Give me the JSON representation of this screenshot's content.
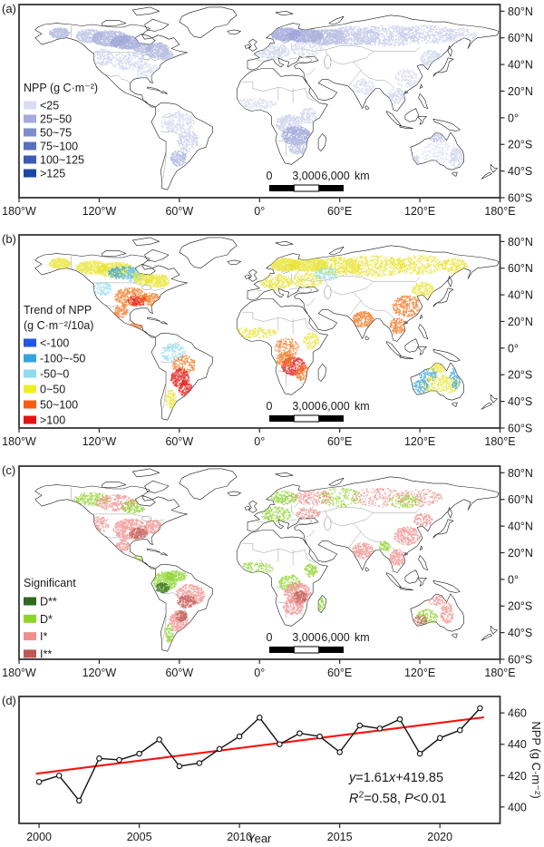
{
  "panel_letters": {
    "a": "(a)",
    "b": "(b)",
    "c": "(c)",
    "d": "(d)"
  },
  "map_axes": {
    "lon_ticks": [
      "180°W",
      "120°W",
      "60°W",
      "0°",
      "60°E",
      "120°E",
      "180°E"
    ],
    "lat_ticks": [
      "80°N",
      "60°N",
      "40°N",
      "20°N",
      "0°",
      "20°S",
      "40°S",
      "60°S"
    ]
  },
  "scalebar": {
    "start": "0",
    "mid": "3,000",
    "end": "6,000",
    "unit": "km"
  },
  "legends": {
    "a": {
      "title": "NPP (g C·m⁻²)",
      "items": [
        {
          "label": "<25",
          "color": "#dadcf0"
        },
        {
          "label": "25~50",
          "color": "#a6abdc"
        },
        {
          "label": "50~75",
          "color": "#7e8cca"
        },
        {
          "label": "75~100",
          "color": "#5a72be"
        },
        {
          "label": "100~125",
          "color": "#3b5cb2"
        },
        {
          "label": ">125",
          "color": "#1b46a4"
        }
      ]
    },
    "b": {
      "title": "Trend of NPP",
      "subtitle": "(g C·m⁻²/10a)",
      "items": [
        {
          "label": "<-100",
          "color": "#2255e2"
        },
        {
          "label": "-100~-50",
          "color": "#37a4db"
        },
        {
          "label": "-50~0",
          "color": "#8edbee"
        },
        {
          "label": "0~50",
          "color": "#f1ee27"
        },
        {
          "label": "50~100",
          "color": "#f85d13"
        },
        {
          "label": ">100",
          "color": "#e41413"
        }
      ]
    },
    "c": {
      "title": "Significant",
      "items": [
        {
          "label": "D**",
          "color": "#2e6b1e"
        },
        {
          "label": "D*",
          "color": "#8cd427"
        },
        {
          "label": "I*",
          "color": "#ee908d"
        },
        {
          "label": "I**",
          "color": "#bd5a54"
        }
      ]
    }
  },
  "chart_data": {
    "type": "line",
    "xlabel": "Year",
    "ylabel": "NPP (g C·m⁻²)",
    "x": [
      2000,
      2001,
      2002,
      2003,
      2004,
      2005,
      2006,
      2007,
      2008,
      2009,
      2010,
      2011,
      2012,
      2013,
      2014,
      2015,
      2016,
      2017,
      2018,
      2019,
      2020,
      2021,
      2022
    ],
    "values": [
      416,
      420,
      404,
      431,
      430,
      434,
      443,
      426,
      428,
      437,
      445,
      457,
      440,
      447,
      445,
      435,
      452,
      450,
      456,
      434,
      444,
      449,
      463
    ],
    "xticks": [
      2000,
      2005,
      2010,
      2015,
      2020
    ],
    "yticks": [
      400,
      420,
      440,
      460
    ],
    "xlim": [
      1999,
      2023
    ],
    "ylim": [
      389.5,
      470.5
    ],
    "grid": false,
    "legend_position": "none",
    "line_color": "#111111",
    "marker": "open-circle",
    "trendline": {
      "slope": 1.61,
      "intercept": 419.85,
      "r2": 0.58,
      "p": "<0.01",
      "color": "#fa1110",
      "equation": [
        {
          "t": "y",
          "i": true
        },
        {
          "t": "=1.61"
        },
        {
          "t": "x",
          "i": true
        },
        {
          "t": "+419.85"
        }
      ],
      "stats": [
        {
          "t": "R",
          "i": true
        },
        {
          "t": "2",
          "sup": true
        },
        {
          "t": "=0.58, "
        },
        {
          "t": "P",
          "i": true
        },
        {
          "t": "<0.01"
        }
      ]
    }
  },
  "map_speckles": {
    "a": [
      [
        -150,
        64,
        8,
        4,
        "#aab2dd",
        260
      ],
      [
        -128,
        62,
        10,
        5,
        "#b9c0e4",
        300
      ],
      [
        -112,
        60,
        14,
        6,
        "#a5aeda",
        550
      ],
      [
        -100,
        57,
        12,
        5,
        "#97a1d5",
        500
      ],
      [
        -88,
        54,
        8,
        5,
        "#b0b7df",
        260
      ],
      [
        -77,
        51,
        9,
        6,
        "#a5aeda",
        320
      ],
      [
        -70,
        47,
        5,
        4,
        "#b9c0e4",
        140
      ],
      [
        -118,
        46,
        8,
        6,
        "#ccd1ec",
        140
      ],
      [
        -98,
        43,
        14,
        7,
        "#ccd1ec",
        220
      ],
      [
        -84,
        34,
        9,
        7,
        "#d3d7ee",
        150
      ],
      [
        19,
        63,
        11,
        5,
        "#99a2d6",
        500
      ],
      [
        34,
        62,
        13,
        5,
        "#99a2d6",
        520
      ],
      [
        50,
        61,
        15,
        6,
        "#adb4dd",
        450
      ],
      [
        70,
        62,
        20,
        7,
        "#bcc2e4",
        480
      ],
      [
        95,
        62,
        25,
        8,
        "#c6cbe9",
        420
      ],
      [
        125,
        63,
        22,
        7,
        "#c6cbe9",
        330
      ],
      [
        150,
        62,
        12,
        6,
        "#cdd2ec",
        160
      ],
      [
        10,
        50,
        12,
        6,
        "#ccd1ec",
        220
      ],
      [
        35,
        52,
        12,
        6,
        "#d3d7ee",
        160
      ],
      [
        128,
        45,
        8,
        6,
        "#ccd1ec",
        160
      ],
      [
        110,
        30,
        9,
        7,
        "#d3d7ee",
        130
      ],
      [
        78,
        24,
        8,
        6,
        "#d3d7ee",
        110
      ],
      [
        102,
        17,
        6,
        6,
        "#ccd1ec",
        110
      ],
      [
        -62,
        -3,
        13,
        8,
        "#d3d7ee",
        260
      ],
      [
        -54,
        -17,
        8,
        8,
        "#c6cbe9",
        170
      ],
      [
        -61,
        -30,
        6,
        6,
        "#aab2dd",
        150
      ],
      [
        22,
        -4,
        10,
        7,
        "#c6cbe9",
        260
      ],
      [
        27,
        -13,
        11,
        7,
        "#99a2d6",
        430
      ],
      [
        29,
        -21,
        8,
        6,
        "#b9c0e4",
        200
      ],
      [
        -5,
        11,
        18,
        4,
        "#d3d7ee",
        150
      ],
      [
        36,
        2,
        6,
        6,
        "#ccd1ec",
        110
      ],
      [
        135,
        -26,
        15,
        8,
        "#dfe2f3",
        200
      ],
      [
        133,
        -14,
        8,
        4,
        "#b9c0e4",
        130
      ],
      [
        147,
        -30,
        5,
        8,
        "#ccd1ec",
        110
      ],
      [
        115,
        -31,
        4,
        4,
        "#c6cbe9",
        70
      ]
    ],
    "b": [
      [
        -150,
        64,
        8,
        4,
        "#e9e32e",
        220
      ],
      [
        -126,
        61,
        12,
        5,
        "#e9e32e",
        380
      ],
      [
        -108,
        59,
        14,
        6,
        "#e9e32e",
        420
      ],
      [
        -102,
        57,
        13,
        5,
        "#37a4db",
        240
      ],
      [
        -95,
        55,
        8,
        5,
        "#8edbee",
        140
      ],
      [
        -88,
        53,
        8,
        5,
        "#e9e32e",
        220
      ],
      [
        -77,
        51,
        9,
        5,
        "#e9e32e",
        260
      ],
      [
        -118,
        45,
        7,
        5,
        "#8edbee",
        90
      ],
      [
        -97,
        39,
        12,
        7,
        "#f4741d",
        300
      ],
      [
        -92,
        36,
        7,
        4,
        "#e41413",
        110
      ],
      [
        -82,
        37,
        7,
        5,
        "#f4741d",
        150
      ],
      [
        -104,
        28,
        5,
        5,
        "#f4741d",
        90
      ],
      [
        -92,
        18,
        5,
        3,
        "#f4741d",
        70
      ],
      [
        -65,
        -3,
        9,
        7,
        "#8edbee",
        150
      ],
      [
        -57,
        -12,
        9,
        7,
        "#f4741d",
        140
      ],
      [
        -60,
        -22,
        7,
        7,
        "#e41413",
        230
      ],
      [
        -56,
        -30,
        5,
        6,
        "#e41413",
        130
      ],
      [
        -67,
        -38,
        4,
        7,
        "#e9e32e",
        100
      ],
      [
        19,
        63,
        11,
        5,
        "#e9e32e",
        560
      ],
      [
        36,
        63,
        14,
        5,
        "#e9e32e",
        520
      ],
      [
        58,
        62,
        18,
        7,
        "#e9e32e",
        380
      ],
      [
        85,
        62,
        25,
        8,
        "#e9e32e",
        420
      ],
      [
        118,
        63,
        22,
        7,
        "#e9e32e",
        300
      ],
      [
        145,
        62,
        10,
        6,
        "#e9e32e",
        160
      ],
      [
        12,
        50,
        12,
        6,
        "#e9e32e",
        240
      ],
      [
        35,
        51,
        11,
        6,
        "#e9e32e",
        160
      ],
      [
        50,
        56,
        9,
        5,
        "#8edbee",
        110
      ],
      [
        -5,
        12,
        18,
        4,
        "#e9e32e",
        160
      ],
      [
        20,
        1,
        9,
        7,
        "#f4741d",
        130
      ],
      [
        25,
        -13,
        9,
        7,
        "#e41413",
        250
      ],
      [
        19,
        -8,
        7,
        5,
        "#f4741d",
        140
      ],
      [
        32,
        -18,
        6,
        6,
        "#f4741d",
        120
      ],
      [
        38,
        6,
        6,
        6,
        "#e9e32e",
        100
      ],
      [
        77,
        22,
        8,
        6,
        "#f4741d",
        210
      ],
      [
        110,
        32,
        11,
        8,
        "#f4741d",
        240
      ],
      [
        122,
        44,
        8,
        6,
        "#e9e32e",
        170
      ],
      [
        103,
        17,
        6,
        6,
        "#f4741d",
        130
      ],
      [
        125,
        -19,
        7,
        6,
        "#37a4db",
        100
      ],
      [
        135,
        -27,
        14,
        7,
        "#e9e32e",
        240
      ],
      [
        120,
        -28,
        6,
        5,
        "#37a4db",
        90
      ],
      [
        146,
        -22,
        4,
        8,
        "#37a4db",
        90
      ],
      [
        132,
        -14,
        8,
        4,
        "#e9e32e",
        110
      ]
    ],
    "c": [
      [
        -126,
        61,
        13,
        5,
        "#8cd427",
        170
      ],
      [
        -108,
        58,
        15,
        6,
        "#ee908d",
        240
      ],
      [
        -95,
        55,
        9,
        5,
        "#8cd427",
        130
      ],
      [
        -120,
        42,
        7,
        6,
        "#ee908d",
        110
      ],
      [
        -97,
        38,
        13,
        8,
        "#ee908d",
        430
      ],
      [
        -91,
        35,
        7,
        4,
        "#bd5a54",
        140
      ],
      [
        -80,
        40,
        7,
        5,
        "#ee908d",
        170
      ],
      [
        -103,
        26,
        5,
        5,
        "#ee908d",
        100
      ],
      [
        -90,
        17,
        5,
        3,
        "#8cd427",
        70
      ],
      [
        -71,
        -1,
        9,
        7,
        "#8cd427",
        300
      ],
      [
        -73,
        -6,
        5,
        4,
        "#2e6b1e",
        130
      ],
      [
        -63,
        3,
        8,
        4,
        "#8cd427",
        130
      ],
      [
        -52,
        -11,
        11,
        8,
        "#ee908d",
        340
      ],
      [
        -55,
        -16,
        7,
        5,
        "#bd5a54",
        130
      ],
      [
        -61,
        -31,
        7,
        8,
        "#ee908d",
        270
      ],
      [
        -59,
        -27,
        4,
        4,
        "#bd5a54",
        100
      ],
      [
        -68,
        -40,
        3,
        7,
        "#8cd427",
        80
      ],
      [
        17,
        62,
        11,
        5,
        "#8cd427",
        150
      ],
      [
        40,
        62,
        14,
        6,
        "#ee908d",
        170
      ],
      [
        60,
        62,
        16,
        7,
        "#8cd427",
        140
      ],
      [
        90,
        62,
        22,
        7,
        "#ee908d",
        170
      ],
      [
        120,
        62,
        16,
        7,
        "#ee908d",
        140
      ],
      [
        108,
        59,
        12,
        5,
        "#8cd427",
        100
      ],
      [
        12,
        49,
        11,
        6,
        "#8cd427",
        150
      ],
      [
        36,
        50,
        9,
        5,
        "#ee908d",
        100
      ],
      [
        -5,
        9,
        16,
        4,
        "#8cd427",
        120
      ],
      [
        22,
        -2,
        8,
        6,
        "#8cd427",
        130
      ],
      [
        28,
        -10,
        10,
        8,
        "#ee908d",
        340
      ],
      [
        30,
        -13,
        5,
        5,
        "#bd5a54",
        130
      ],
      [
        25,
        -20,
        8,
        6,
        "#ee908d",
        170
      ],
      [
        38,
        7,
        5,
        5,
        "#8cd427",
        90
      ],
      [
        45,
        -19,
        3,
        6,
        "#8cd427",
        60
      ],
      [
        77,
        22,
        8,
        6,
        "#ee908d",
        190
      ],
      [
        110,
        33,
        10,
        7,
        "#ee908d",
        210
      ],
      [
        122,
        45,
        7,
        5,
        "#ee908d",
        110
      ],
      [
        103,
        17,
        6,
        6,
        "#ee908d",
        150
      ],
      [
        93,
        25,
        4,
        4,
        "#8cd427",
        70
      ],
      [
        125,
        -28,
        8,
        6,
        "#8cd427",
        110
      ],
      [
        140,
        -25,
        5,
        8,
        "#ee908d",
        110
      ],
      [
        133,
        -15,
        8,
        4,
        "#ee908d",
        90
      ],
      [
        120,
        -30,
        5,
        4,
        "#bd5a54",
        50
      ]
    ]
  }
}
